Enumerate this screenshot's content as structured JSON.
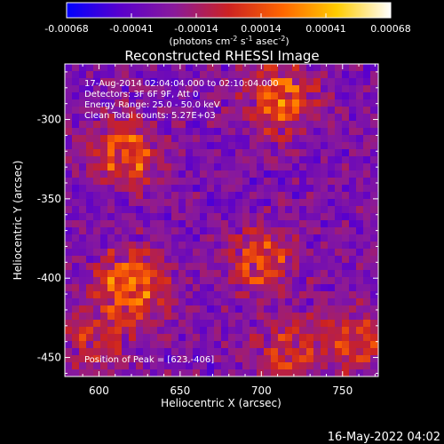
{
  "chart_data": {
    "type": "heatmap",
    "title": "Reconstructed RHESSI Image",
    "xlabel": "Heliocentric X (arcsec)",
    "ylabel": "Heliocentric Y (arcsec)",
    "xlim": [
      579,
      772
    ],
    "ylim": [
      -462,
      -265
    ],
    "x_ticks": [
      600,
      650,
      700,
      750
    ],
    "y_ticks": [
      -450,
      -400,
      -350,
      -300
    ],
    "colorbar": {
      "range": [
        -0.00068,
        0.00068
      ],
      "ticks": [
        "-0.00068",
        "-0.00041",
        "-0.00014",
        "0.00014",
        "0.00041",
        "0.00068"
      ],
      "units_main": "(photons cm",
      "units_sup1": "-2",
      "units_mid": " s",
      "units_sup2": "-1",
      "units_mid2": " asec",
      "units_sup3": "-2",
      "units_end": ")",
      "colors": [
        "#0000ff",
        "#5a00cc",
        "#8a1a9a",
        "#cc2222",
        "#ff6600",
        "#ffcc00",
        "#ffffff"
      ]
    },
    "annotations": [
      "17-Aug-2014 02:04:04.000 to 02:10:04.000",
      "Detectors: 3F 6F 9F, Att 0",
      "Energy Range: 25.0 - 50.0 keV",
      "Clean     Total counts: 5.27E+03"
    ],
    "peak_label": "Position of Peak = [623,-406]",
    "sources": [
      {
        "x": 620,
        "y": -404,
        "intensity": 1.0
      },
      {
        "x": 712,
        "y": -288,
        "intensity": 0.9
      },
      {
        "x": 617,
        "y": -322,
        "intensity": 0.8
      },
      {
        "x": 700,
        "y": -390,
        "intensity": 0.7
      },
      {
        "x": 718,
        "y": -445,
        "intensity": 0.6
      },
      {
        "x": 760,
        "y": -440,
        "intensity": 0.6
      },
      {
        "x": 600,
        "y": -440,
        "intensity": 0.5
      }
    ]
  },
  "footer_date": "16-May-2022 04:02"
}
